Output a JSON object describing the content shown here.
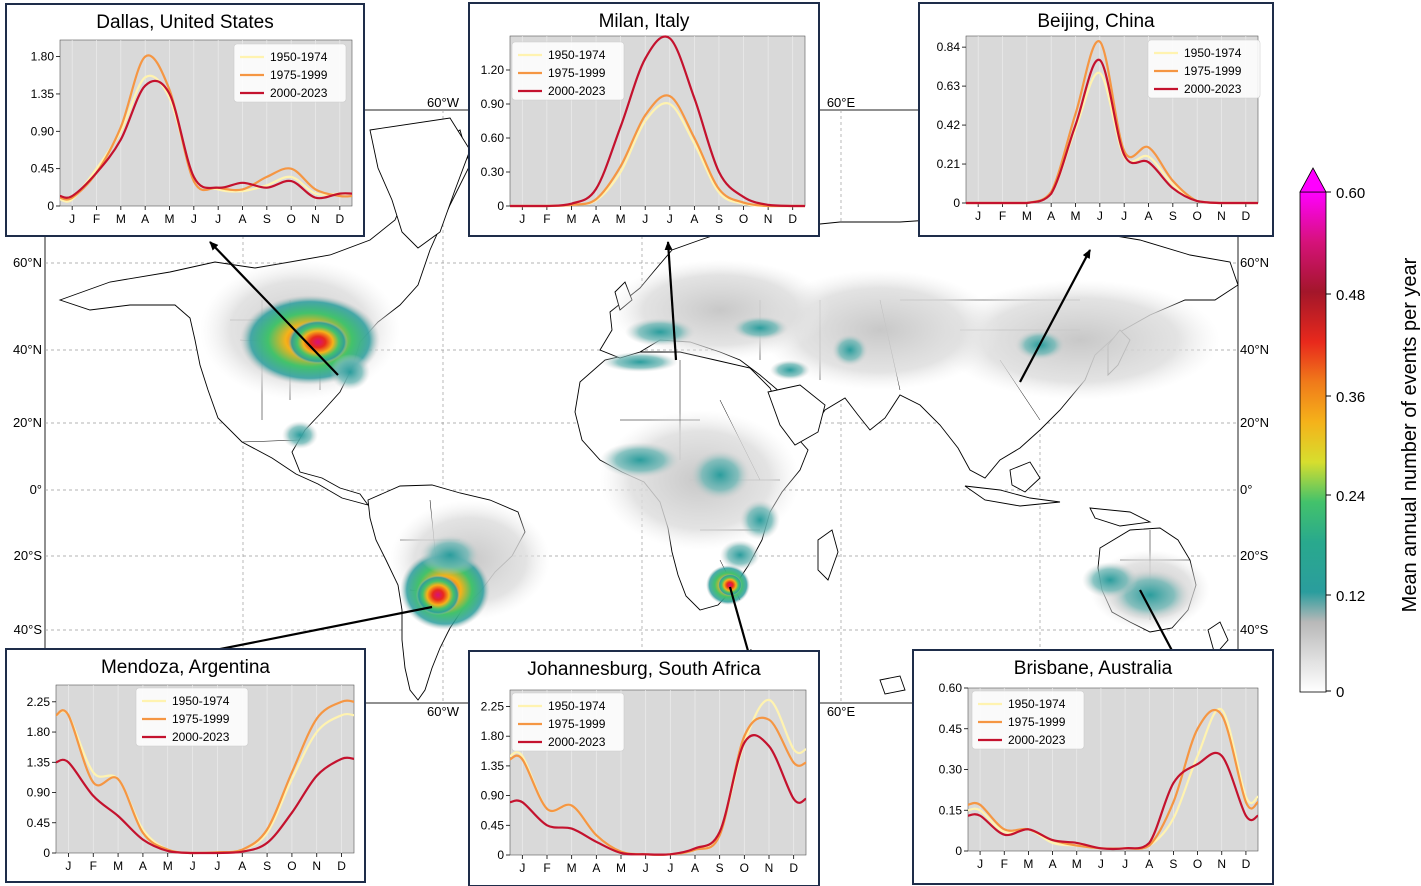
{
  "map": {
    "lon_labels_top": [
      "60°W",
      "60°E"
    ],
    "lon_labels_bottom": [
      "60°W",
      "60°E"
    ],
    "lat_labels": [
      "60°N",
      "40°N",
      "20°N",
      "0°",
      "20°S",
      "40°S"
    ]
  },
  "colorbar": {
    "label": "Mean annual number of events per year",
    "ticks": [
      "0.60",
      "0.48",
      "0.36",
      "0.24",
      "0.12",
      "0"
    ],
    "colors": {
      "c0": "#ffffff",
      "c1": "#bdbdbd",
      "c2": "#2a9d9d",
      "c3": "#43c26b",
      "c4": "#d7de2e",
      "c5": "#f39c1b",
      "c6": "#e8291c",
      "c7": "#a3162a",
      "c8": "#d6127a",
      "c9": "#ff00ff"
    }
  },
  "legend": {
    "s1": "1950-1974",
    "s2": "1975-1999",
    "s3": "2000-2023",
    "colors": {
      "s1": "#fff3b0",
      "s2": "#f59643",
      "s3": "#c4122e"
    }
  },
  "months": [
    "J",
    "F",
    "M",
    "A",
    "M",
    "J",
    "J",
    "A",
    "S",
    "O",
    "N",
    "D"
  ],
  "chart_data": [
    {
      "type": "line",
      "title": "Dallas, United States",
      "yticks": [
        "1.80",
        "1.35",
        "0.90",
        "0.45",
        "0"
      ],
      "ylim": [
        0,
        2.0
      ],
      "series": [
        {
          "name": "1950-1974",
          "values": [
            0.08,
            0.45,
            0.9,
            1.55,
            1.3,
            0.35,
            0.2,
            0.18,
            0.25,
            0.35,
            0.15,
            0.15
          ]
        },
        {
          "name": "1975-1999",
          "values": [
            0.1,
            0.4,
            0.95,
            1.8,
            1.4,
            0.3,
            0.22,
            0.2,
            0.35,
            0.45,
            0.2,
            0.12
          ]
        },
        {
          "name": "2000-2023",
          "values": [
            0.12,
            0.4,
            0.8,
            1.45,
            1.35,
            0.35,
            0.22,
            0.28,
            0.22,
            0.3,
            0.1,
            0.15
          ]
        }
      ]
    },
    {
      "type": "line",
      "title": "Milan, Italy",
      "yticks": [
        "1.20",
        "0.90",
        "0.60",
        "0.30",
        "0"
      ],
      "ylim": [
        0,
        1.5
      ],
      "series": [
        {
          "name": "1950-1974",
          "values": [
            0,
            0,
            0.01,
            0.05,
            0.3,
            0.75,
            0.9,
            0.55,
            0.12,
            0.02,
            0,
            0
          ]
        },
        {
          "name": "1975-1999",
          "values": [
            0,
            0,
            0.01,
            0.06,
            0.35,
            0.8,
            0.97,
            0.6,
            0.15,
            0.03,
            0,
            0
          ]
        },
        {
          "name": "2000-2023",
          "values": [
            0,
            0,
            0.02,
            0.15,
            0.7,
            1.3,
            1.48,
            0.95,
            0.3,
            0.08,
            0.01,
            0
          ]
        }
      ]
    },
    {
      "type": "line",
      "title": "Beijing, China",
      "yticks": [
        "0.84",
        "0.63",
        "0.42",
        "0.21",
        "0"
      ],
      "ylim": [
        0,
        0.9
      ],
      "series": [
        {
          "name": "1950-1974",
          "values": [
            0,
            0,
            0,
            0.05,
            0.4,
            0.7,
            0.25,
            0.25,
            0.1,
            0.01,
            0,
            0
          ]
        },
        {
          "name": "1975-1999",
          "values": [
            0,
            0,
            0,
            0.06,
            0.48,
            0.87,
            0.28,
            0.3,
            0.12,
            0.01,
            0,
            0
          ]
        },
        {
          "name": "2000-2023",
          "values": [
            0,
            0,
            0,
            0.05,
            0.42,
            0.77,
            0.26,
            0.22,
            0.08,
            0.01,
            0,
            0
          ]
        }
      ]
    },
    {
      "type": "line",
      "title": "Mendoza, Argentina",
      "yticks": [
        "2.25",
        "1.80",
        "1.35",
        "0.90",
        "0.45",
        "0"
      ],
      "ylim": [
        0,
        2.5
      ],
      "series": [
        {
          "name": "1950-1974",
          "values": [
            2.05,
            1.2,
            1.1,
            0.35,
            0.05,
            0,
            0.01,
            0.05,
            0.3,
            1.1,
            1.8,
            2.05
          ]
        },
        {
          "name": "1975-1999",
          "values": [
            2.05,
            1.05,
            1.1,
            0.3,
            0.05,
            0,
            0.01,
            0.05,
            0.35,
            1.2,
            2.0,
            2.25
          ]
        },
        {
          "name": "2000-2023",
          "values": [
            1.35,
            0.85,
            0.55,
            0.2,
            0.03,
            0,
            0,
            0.02,
            0.15,
            0.6,
            1.15,
            1.4
          ]
        }
      ]
    },
    {
      "type": "line",
      "title": "Johannesburg, South Africa",
      "yticks": [
        "2.25",
        "1.80",
        "1.35",
        "0.90",
        "0.45",
        "0"
      ],
      "ylim": [
        0,
        2.5
      ],
      "series": [
        {
          "name": "1950-1974",
          "values": [
            1.5,
            0.7,
            0.75,
            0.3,
            0.05,
            0.01,
            0.01,
            0.08,
            0.35,
            1.7,
            2.35,
            1.6
          ]
        },
        {
          "name": "1975-1999",
          "values": [
            1.45,
            0.7,
            0.75,
            0.3,
            0.05,
            0.01,
            0.01,
            0.08,
            0.3,
            1.8,
            2.05,
            1.4
          ]
        },
        {
          "name": "2000-2023",
          "values": [
            0.8,
            0.45,
            0.4,
            0.2,
            0.03,
            0.01,
            0.01,
            0.1,
            0.35,
            1.7,
            1.65,
            0.85
          ]
        }
      ]
    },
    {
      "type": "line",
      "title": "Brisbane, Australia",
      "yticks": [
        "0.60",
        "0.45",
        "0.30",
        "0.15",
        "0"
      ],
      "ylim": [
        0,
        0.6
      ],
      "series": [
        {
          "name": "1950-1974",
          "values": [
            0.15,
            0.07,
            0.08,
            0.03,
            0.02,
            0.01,
            0.01,
            0.02,
            0.12,
            0.35,
            0.52,
            0.2
          ]
        },
        {
          "name": "1975-1999",
          "values": [
            0.17,
            0.08,
            0.08,
            0.04,
            0.02,
            0.01,
            0.01,
            0.02,
            0.18,
            0.45,
            0.5,
            0.18
          ]
        },
        {
          "name": "2000-2023",
          "values": [
            0.13,
            0.06,
            0.08,
            0.04,
            0.03,
            0.01,
            0.01,
            0.03,
            0.25,
            0.32,
            0.35,
            0.13
          ]
        }
      ]
    }
  ]
}
